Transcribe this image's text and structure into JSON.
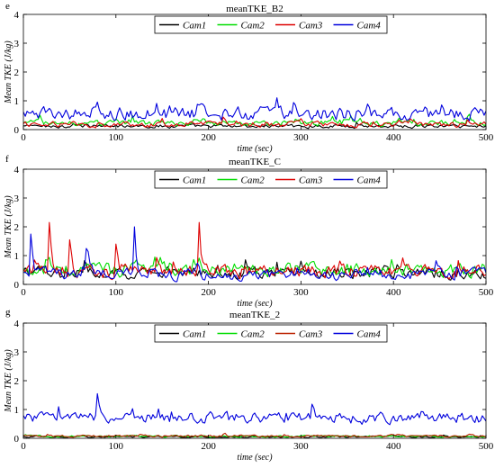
{
  "figure": {
    "panel_tags": [
      "e",
      "f",
      "g"
    ]
  },
  "chart_data": [
    {
      "type": "line",
      "panel": "e",
      "title": "meanTKE_B2",
      "xlabel": "time (sec)",
      "ylabel": "Mean TKE (J/kg)",
      "xlim": [
        0,
        500
      ],
      "ylim": [
        0,
        4
      ],
      "xticks": [
        0,
        100,
        200,
        300,
        400,
        500
      ],
      "yticks": [
        0,
        1,
        2,
        3,
        4
      ],
      "legend_position": "top-center",
      "grid": false,
      "series": [
        {
          "name": "Cam1",
          "color": "#000000",
          "mean": 0.12,
          "amp": 0.1,
          "x": [
            0,
            500
          ],
          "y": [
            0.12,
            0.12
          ]
        },
        {
          "name": "Cam2",
          "color": "#00dd00",
          "mean": 0.22,
          "amp": 0.15,
          "x": [
            0,
            500
          ],
          "y": [
            0.22,
            0.22
          ]
        },
        {
          "name": "Cam3",
          "color": "#dd0000",
          "mean": 0.18,
          "amp": 0.15,
          "x": [
            0,
            500
          ],
          "y": [
            0.18,
            0.18
          ]
        },
        {
          "name": "Cam4",
          "color": "#0000dd",
          "mean": 0.55,
          "amp": 0.35,
          "x": [
            0,
            500
          ],
          "y": [
            0.55,
            0.55
          ]
        }
      ]
    },
    {
      "type": "line",
      "panel": "f",
      "title": "meanTKE_C",
      "xlabel": "time (sec)",
      "ylabel": "Mean TKE (J/kg)",
      "xlim": [
        0,
        500
      ],
      "ylim": [
        0,
        4
      ],
      "xticks": [
        0,
        100,
        200,
        300,
        400,
        500
      ],
      "yticks": [
        0,
        1,
        2,
        3,
        4
      ],
      "legend_position": "top-center",
      "grid": false,
      "series": [
        {
          "name": "Cam1",
          "color": "#000000",
          "mean": 0.4,
          "amp": 0.3,
          "x": [
            0,
            500
          ],
          "y": [
            0.4,
            0.4
          ]
        },
        {
          "name": "Cam2",
          "color": "#00dd00",
          "mean": 0.5,
          "amp": 0.35,
          "x": [
            0,
            500
          ],
          "y": [
            0.5,
            0.5
          ]
        },
        {
          "name": "Cam3",
          "color": "#dd0000",
          "mean": 0.45,
          "amp": 0.35,
          "peaks": [
            [
              28,
              2.15
            ],
            [
              50,
              1.55
            ],
            [
              190,
              2.15
            ],
            [
              100,
              1.4
            ]
          ],
          "x": [
            0,
            500
          ],
          "y": [
            0.45,
            0.45
          ]
        },
        {
          "name": "Cam4",
          "color": "#0000dd",
          "mean": 0.35,
          "amp": 0.3,
          "peaks": [
            [
              120,
              2.0
            ],
            [
              8,
              1.75
            ],
            [
              68,
              1.25
            ]
          ],
          "x": [
            0,
            500
          ],
          "y": [
            0.35,
            0.35
          ]
        }
      ]
    },
    {
      "type": "line",
      "panel": "g",
      "title": "meanTKE_2",
      "xlabel": "time (sec)",
      "ylabel": "Mean TKE (J/kg)",
      "xlim": [
        0,
        500
      ],
      "ylim": [
        0,
        4
      ],
      "xticks": [
        0,
        100,
        200,
        300,
        400,
        500
      ],
      "yticks": [
        0,
        1,
        2,
        3,
        4
      ],
      "legend_position": "top-center",
      "grid": false,
      "series": [
        {
          "name": "Cam1",
          "color": "#000000",
          "mean": 0.05,
          "amp": 0.04,
          "x": [
            0,
            500
          ],
          "y": [
            0.05,
            0.05
          ]
        },
        {
          "name": "Cam2",
          "color": "#00dd00",
          "mean": 0.07,
          "amp": 0.05,
          "x": [
            0,
            500
          ],
          "y": [
            0.07,
            0.07
          ]
        },
        {
          "name": "Cam3",
          "color": "#bb2200",
          "mean": 0.08,
          "amp": 0.06,
          "x": [
            0,
            500
          ],
          "y": [
            0.08,
            0.08
          ]
        },
        {
          "name": "Cam4",
          "color": "#0000dd",
          "mean": 0.7,
          "amp": 0.3,
          "peaks": [
            [
              80,
              1.55
            ]
          ],
          "x": [
            0,
            500
          ],
          "y": [
            0.7,
            0.7
          ]
        }
      ]
    }
  ]
}
